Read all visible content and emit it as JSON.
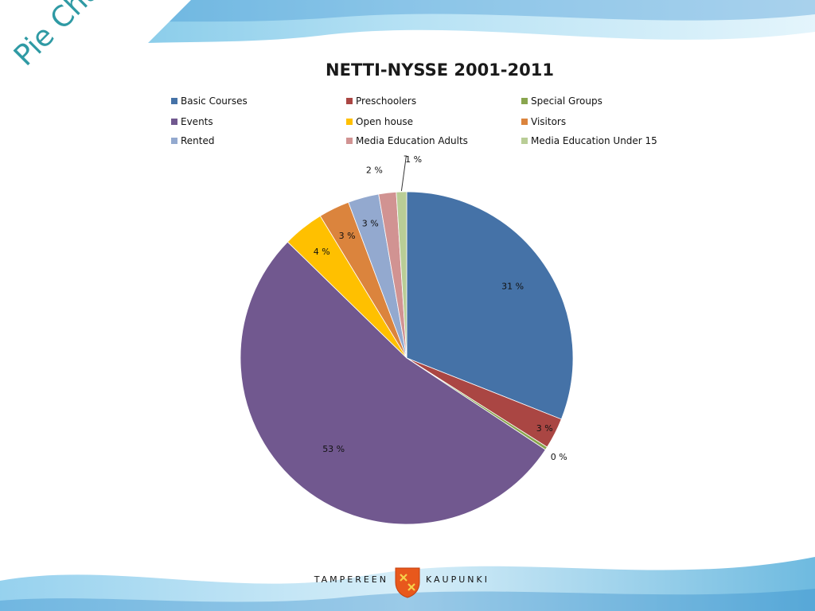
{
  "slide": {
    "ribbon_text": "Pie Chart",
    "footer_left": "TAMPEREEN",
    "footer_right": "KAUPUNKI"
  },
  "chart_data": {
    "type": "pie",
    "title": "NETTI-NYSSE 2001-2011",
    "legend_placement": "top",
    "start_angle": "12 o'clock, clockwise",
    "slices": [
      {
        "label": "Basic Courses",
        "value": 31,
        "data_label": "31 %",
        "color": "#4572A7"
      },
      {
        "label": "Preschoolers",
        "value": 3,
        "data_label": "3 %",
        "color": "#AA4643"
      },
      {
        "label": "Special Groups",
        "value": 0.3,
        "data_label": "0 %",
        "color": "#89A54E"
      },
      {
        "label": "Events",
        "value": 53,
        "data_label": "53 %",
        "color": "#71588F"
      },
      {
        "label": "Open house",
        "value": 4,
        "data_label": "4 %",
        "color": "#FFC000"
      },
      {
        "label": "Visitors",
        "value": 3,
        "data_label": "3 %",
        "color": "#DB843D"
      },
      {
        "label": "Rented",
        "value": 3,
        "data_label": "3 %",
        "color": "#93A9CF"
      },
      {
        "label": "Media Education Adults",
        "value": 1.7,
        "data_label": "2 %",
        "color": "#D19392"
      },
      {
        "label": "Media Education Under 15",
        "value": 1,
        "data_label": "1 %",
        "color": "#B9CD96"
      }
    ],
    "legend_order": [
      "Basic Courses",
      "Preschoolers",
      "Special Groups",
      "Events",
      "Open house",
      "Visitors",
      "Rented",
      "Media Education Adults",
      "Media Education Under 15"
    ]
  }
}
